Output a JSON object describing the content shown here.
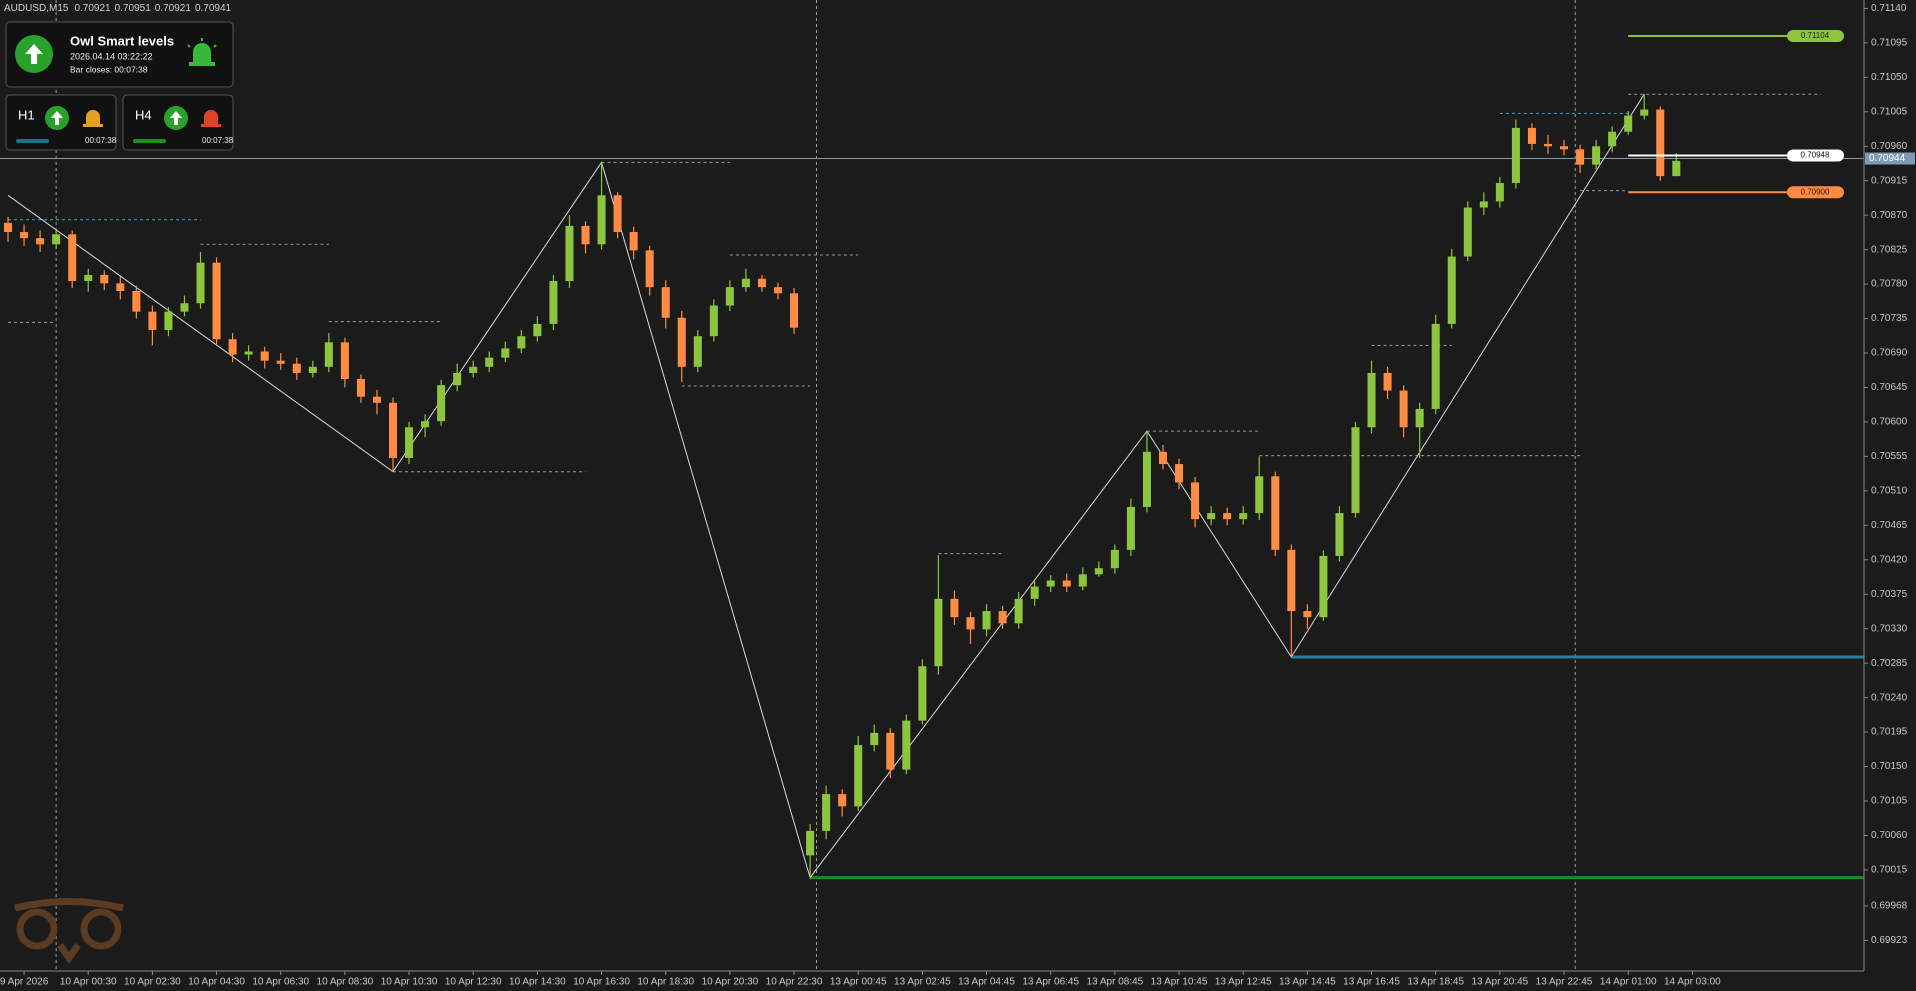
{
  "chart_data": {
    "type": "candlestick",
    "symbol": "AUDUSD,M15",
    "bull_color": "#8cc63f",
    "bear_color": "#ff8c42",
    "xlim": [
      -0.5,
      115.7
    ],
    "ylim": [
      0.69883,
      0.71151
    ],
    "yticks": [
      {
        "value": 0.7114,
        "label": "0.71140"
      },
      0.71095,
      {
        "value": 0.7105,
        "label": "0.71050"
      },
      0.71005,
      {
        "value": 0.7096,
        "label": "0.70960"
      },
      0.70915,
      {
        "value": 0.7087,
        "label": "0.70870"
      },
      0.70825,
      {
        "value": 0.7078,
        "label": "0.70780"
      },
      0.70735,
      {
        "value": 0.7069,
        "label": "0.70690"
      },
      0.70645,
      {
        "value": 0.706,
        "label": "0.70600"
      },
      0.70555,
      {
        "value": 0.7051,
        "label": "0.70510"
      },
      0.70465,
      {
        "value": 0.7042,
        "label": "0.70420"
      },
      0.70375,
      {
        "value": 0.7033,
        "label": "0.70330"
      },
      0.70285,
      {
        "value": 0.7024,
        "label": "0.70240"
      },
      0.70195,
      {
        "value": 0.7015,
        "label": "0.70150"
      },
      0.70105,
      {
        "value": 0.7006,
        "label": "0.70060"
      },
      0.70015,
      0.69968,
      0.69923
    ],
    "xticks": [
      {
        "value": 1,
        "label": "9 Apr 2026"
      },
      {
        "value": 5,
        "label": "10 Apr 00:30"
      },
      {
        "value": 9,
        "label": "10 Apr 02:30"
      },
      {
        "value": 13,
        "label": "10 Apr 04:30"
      },
      {
        "value": 17,
        "label": "10 Apr 06:30"
      },
      {
        "value": 21,
        "label": "10 Apr 08:30"
      },
      {
        "value": 25,
        "label": "10 Apr 10:30"
      },
      {
        "value": 29,
        "label": "10 Apr 12:30"
      },
      {
        "value": 33,
        "label": "10 Apr 14:30"
      },
      {
        "value": 37,
        "label": "10 Apr 16:30"
      },
      {
        "value": 41,
        "label": "10 Apr 18:30"
      },
      {
        "value": 45,
        "label": "10 Apr 20:30"
      },
      {
        "value": 49,
        "label": "10 Apr 22:30"
      },
      {
        "value": 53,
        "label": "13 Apr 00:45"
      },
      {
        "value": 57,
        "label": "13 Apr 02:45"
      },
      {
        "value": 61,
        "label": "13 Apr 04:45"
      },
      {
        "value": 65,
        "label": "13 Apr 06:45"
      },
      {
        "value": 69,
        "label": "13 Apr 08:45"
      },
      {
        "value": 73,
        "label": "13 Apr 10:45"
      },
      {
        "value": 77,
        "label": "13 Apr 12:45"
      },
      {
        "value": 81,
        "label": "13 Apr 14:45"
      },
      {
        "value": 85,
        "label": "13 Apr 16:45"
      },
      {
        "value": 89,
        "label": "13 Apr 18:45"
      },
      {
        "value": 93,
        "label": "13 Apr 20:45"
      },
      {
        "value": 97,
        "label": "13 Apr 22:45"
      },
      {
        "value": 101,
        "label": "14 Apr 01:00"
      },
      {
        "value": 105,
        "label": "14 Apr 03:00"
      }
    ],
    "day_separators": [
      3,
      50.4,
      97.7
    ],
    "open": [
      0.7086,
      0.70848,
      0.7084,
      0.70832,
      0.70845,
      0.70784,
      0.70792,
      0.70781,
      0.70771,
      0.70744,
      0.7072,
      0.70744,
      0.70755,
      0.70808,
      0.70708,
      0.70688,
      0.70692,
      0.7068,
      0.70676,
      0.70664,
      0.70672,
      0.70704,
      0.70656,
      0.70633,
      0.70625,
      0.70553,
      0.70593,
      0.70601,
      0.70648,
      0.70664,
      0.70672,
      0.70684,
      0.70696,
      0.70712,
      0.70728,
      0.70784,
      0.70856,
      0.70832,
      0.70896,
      0.70848,
      0.70824,
      0.70776,
      0.70736,
      0.70672,
      0.70712,
      0.70752,
      0.70776,
      0.70787,
      0.70776,
      0.70768,
      0.70034,
      0.70066,
      0.70114,
      0.70098,
      0.70178,
      0.70194,
      0.70146,
      0.7021,
      0.70281,
      0.70369,
      0.70345,
      0.70329,
      0.70353,
      0.70337,
      0.70369,
      0.70385,
      0.70393,
      0.70385,
      0.70401,
      0.70409,
      0.70433,
      0.70489,
      0.70561,
      0.70545,
      0.70521,
      0.70473,
      0.70481,
      0.70473,
      0.70481,
      0.70529,
      0.70433,
      0.70353,
      0.70345,
      0.70425,
      0.70481,
      0.70593,
      0.70664,
      0.70641,
      0.70593,
      0.70617,
      0.70728,
      0.70816,
      0.7088,
      0.70888,
      0.70912,
      0.70984,
      0.70963,
      0.7096,
      0.70956,
      0.70936,
      0.7096,
      0.70979,
      0.71,
      0.71008,
      0.70921
    ],
    "high": [
      0.70868,
      0.70858,
      0.7085,
      0.70852,
      0.7085,
      0.708,
      0.70798,
      0.7079,
      0.70778,
      0.70752,
      0.7075,
      0.70765,
      0.70822,
      0.70815,
      0.70716,
      0.707,
      0.70698,
      0.7069,
      0.70684,
      0.7068,
      0.70716,
      0.7071,
      0.70662,
      0.70642,
      0.70632,
      0.706,
      0.7061,
      0.70655,
      0.70676,
      0.7068,
      0.70692,
      0.70705,
      0.7072,
      0.70738,
      0.70792,
      0.7087,
      0.70862,
      0.70939,
      0.709,
      0.70855,
      0.7083,
      0.70785,
      0.70745,
      0.7072,
      0.7076,
      0.70785,
      0.708,
      0.70792,
      0.70782,
      0.70775,
      0.70075,
      0.70125,
      0.7012,
      0.7019,
      0.70205,
      0.702,
      0.70218,
      0.7029,
      0.70426,
      0.7038,
      0.70352,
      0.70362,
      0.7036,
      0.70378,
      0.70392,
      0.704,
      0.70402,
      0.7041,
      0.70418,
      0.7044,
      0.705,
      0.70588,
      0.7057,
      0.70552,
      0.70528,
      0.7049,
      0.70488,
      0.7049,
      0.70555,
      0.70535,
      0.7044,
      0.70362,
      0.70432,
      0.7049,
      0.706,
      0.7068,
      0.70672,
      0.70648,
      0.70625,
      0.7074,
      0.70826,
      0.70888,
      0.709,
      0.7092,
      0.70995,
      0.7099,
      0.70975,
      0.70968,
      0.70962,
      0.70968,
      0.70986,
      0.71006,
      0.71028,
      0.71012,
      0.70951
    ],
    "low": [
      0.70835,
      0.7083,
      0.70822,
      0.70826,
      0.70775,
      0.7077,
      0.70772,
      0.7076,
      0.70735,
      0.707,
      0.70712,
      0.70738,
      0.70748,
      0.707,
      0.70678,
      0.7068,
      0.7067,
      0.70668,
      0.70655,
      0.70658,
      0.70665,
      0.70645,
      0.70625,
      0.7061,
      0.70535,
      0.70545,
      0.7058,
      0.70595,
      0.7064,
      0.70658,
      0.70665,
      0.70678,
      0.7069,
      0.70705,
      0.7072,
      0.70775,
      0.7082,
      0.70825,
      0.7084,
      0.70812,
      0.70765,
      0.70722,
      0.70652,
      0.70665,
      0.70705,
      0.70745,
      0.7077,
      0.7077,
      0.7076,
      0.70715,
      0.70005,
      0.70055,
      0.70085,
      0.70092,
      0.7017,
      0.70135,
      0.7014,
      0.70205,
      0.7027,
      0.70335,
      0.7031,
      0.7032,
      0.7033,
      0.7033,
      0.7036,
      0.70378,
      0.70378,
      0.7038,
      0.70398,
      0.70402,
      0.70425,
      0.70482,
      0.70538,
      0.70512,
      0.70462,
      0.70465,
      0.70465,
      0.70466,
      0.70472,
      0.70425,
      0.70293,
      0.7033,
      0.7034,
      0.70418,
      0.70475,
      0.70585,
      0.7063,
      0.7058,
      0.70553,
      0.7061,
      0.70722,
      0.7081,
      0.7087,
      0.7088,
      0.70905,
      0.70955,
      0.7095,
      0.70948,
      0.70925,
      0.7093,
      0.70952,
      0.70975,
      0.70995,
      0.70915,
      0.70921
    ],
    "close": [
      0.70848,
      0.7084,
      0.70832,
      0.70845,
      0.70784,
      0.70792,
      0.70781,
      0.70771,
      0.70744,
      0.7072,
      0.70744,
      0.70755,
      0.70808,
      0.70708,
      0.70688,
      0.70692,
      0.7068,
      0.70676,
      0.70664,
      0.70672,
      0.70704,
      0.70656,
      0.70633,
      0.70625,
      0.70553,
      0.70593,
      0.70601,
      0.70648,
      0.70664,
      0.70672,
      0.70684,
      0.70696,
      0.70712,
      0.70728,
      0.70784,
      0.70856,
      0.70832,
      0.70896,
      0.70848,
      0.70824,
      0.70776,
      0.70736,
      0.70672,
      0.70712,
      0.70752,
      0.70776,
      0.70787,
      0.70776,
      0.70768,
      0.70723,
      0.70066,
      0.70114,
      0.70098,
      0.70178,
      0.70194,
      0.70146,
      0.7021,
      0.70281,
      0.70369,
      0.70345,
      0.70329,
      0.70353,
      0.70337,
      0.70369,
      0.70385,
      0.70393,
      0.70385,
      0.70401,
      0.70409,
      0.70433,
      0.70489,
      0.70561,
      0.70545,
      0.70521,
      0.70473,
      0.70481,
      0.70473,
      0.70481,
      0.70529,
      0.70433,
      0.70353,
      0.70345,
      0.70425,
      0.70481,
      0.70593,
      0.70664,
      0.70641,
      0.70593,
      0.70617,
      0.70728,
      0.70816,
      0.7088,
      0.70888,
      0.70912,
      0.70984,
      0.70963,
      0.7096,
      0.70956,
      0.70936,
      0.7096,
      0.70979,
      0.71,
      0.71008,
      0.70921,
      0.70941
    ],
    "zigzag": {
      "color": "#d8d8d8",
      "x": [
        0,
        24,
        37,
        50,
        71,
        80,
        102
      ],
      "y": [
        0.70896,
        0.70535,
        0.70939,
        0.70005,
        0.70588,
        0.70293,
        0.71028
      ]
    },
    "levels": [
      {
        "from": 0,
        "to": 12,
        "price": 0.70864,
        "color": "#3aa7c9"
      },
      {
        "from": 0,
        "to": 3,
        "price": 0.7073,
        "color": "#9a9a9a"
      },
      {
        "from": 12,
        "to": 20,
        "price": 0.70832,
        "color": "#9a9a9a"
      },
      {
        "from": 20,
        "to": 27,
        "price": 0.70731,
        "color": "#9a9a9a"
      },
      {
        "from": 24,
        "to": 36,
        "price": 0.70535,
        "color": "#9a9a9a"
      },
      {
        "from": 37,
        "to": 45,
        "price": 0.70939,
        "color": "#9a9a9a"
      },
      {
        "from": 45,
        "to": 53,
        "price": 0.70818,
        "color": "#9a9a9a"
      },
      {
        "from": 42,
        "to": 50,
        "price": 0.70647,
        "color": "#9a9a9a"
      },
      {
        "from": 58,
        "to": 62,
        "price": 0.70428,
        "color": "#9a9a9a"
      },
      {
        "from": 71,
        "to": 78,
        "price": 0.70588,
        "color": "#9a9a9a"
      },
      {
        "from": 78,
        "to": 98,
        "price": 0.70556,
        "color": "#9a9a9a"
      },
      {
        "from": 85,
        "to": 90,
        "price": 0.707,
        "color": "#9a9a9a"
      },
      {
        "from": 93,
        "to": 101,
        "price": 0.71003,
        "color": "#3aa7c9"
      },
      {
        "from": 98,
        "to": 101,
        "price": 0.70902,
        "color": "#9a9a9a"
      },
      {
        "from": 101,
        "to": 113,
        "price": 0.71028,
        "color": "#9a9a9a"
      }
    ],
    "support_lines": [
      {
        "from": 50,
        "price": 0.70005,
        "color": "#1f8c1f"
      },
      {
        "from": 80,
        "price": 0.70293,
        "color": "#2a7f9e"
      }
    ],
    "price_lines": [
      {
        "from": 101,
        "value": 0.71104,
        "label": "0.71104",
        "color": "#8cc63f"
      },
      {
        "from": 101,
        "value": 0.70948,
        "label": "0.70948",
        "color": "#ffffff"
      },
      {
        "from": 101,
        "value": 0.709,
        "label": "0.70900",
        "color": "#ff8c42"
      }
    ],
    "bid": 0.70944,
    "bid_color": "#7f9bb3"
  },
  "widget": {
    "title": "Owl Smart levels",
    "datetime": "2026.04.14 03:22:22",
    "bar_closes": "Bar closes: 00:07:38",
    "panels": [
      {
        "label": "H1",
        "timer": "00:07:38"
      },
      {
        "label": "H4",
        "timer": "00:07:38"
      }
    ]
  }
}
